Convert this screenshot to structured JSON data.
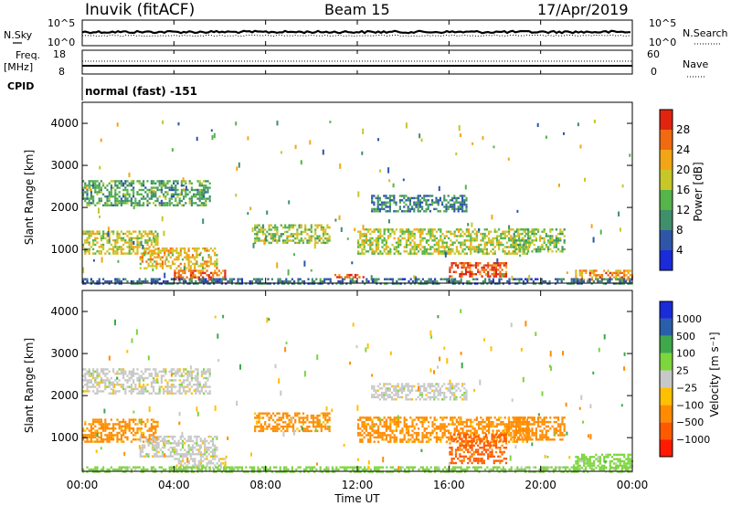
{
  "header": {
    "station": "Inuvik (fitACF)",
    "beam": "Beam 15",
    "date": "17/Apr/2019"
  },
  "sky_panel": {
    "left_label": "N.Sky",
    "right_label": "N.Search",
    "left_ticks": [
      "10^5",
      "10^0"
    ],
    "right_ticks": [
      "10^5",
      "10^0"
    ]
  },
  "freq_panel": {
    "left_label_1": "Freq.",
    "left_label_2": "[MHz]",
    "right_label": "Nave",
    "left_ticks": [
      "18",
      "8"
    ],
    "right_ticks": [
      "60",
      "0"
    ]
  },
  "cpid": {
    "label": "CPID",
    "value": "normal (fast) -151"
  },
  "colors": {
    "power_scale": [
      "#1a2bd8",
      "#2f55a8",
      "#3f8f6a",
      "#55b44a",
      "#c7c728",
      "#f2a615",
      "#ef6a10",
      "#e02410"
    ],
    "velocity_scale": [
      "#ff1a00",
      "#ff5a00",
      "#ff8c00",
      "#ffc000",
      "#c8c8c8",
      "#7cd63c",
      "#3ea84a",
      "#2a5ea8",
      "#1a2bd8"
    ]
  },
  "chart_data": [
    {
      "type": "heatmap",
      "panel": "power",
      "ylabel": "Slant Range [km]",
      "yticks": [
        "1000",
        "2000",
        "3000",
        "4000"
      ],
      "ylim": [
        200,
        4500
      ],
      "xlim_hours": [
        0,
        24
      ],
      "colorbar_label": "Power [dB]",
      "colorbar_ticks": [
        "4",
        "8",
        "12",
        "16",
        "20",
        "24",
        "28"
      ],
      "colorbar_range": [
        0,
        32
      ],
      "echo_regions": [
        {
          "t0": 0.0,
          "t1": 5.6,
          "r0": 2050,
          "r1": 2650,
          "p": 12
        },
        {
          "t0": 0.0,
          "t1": 3.3,
          "r0": 900,
          "r1": 1450,
          "p": 18
        },
        {
          "t0": 2.5,
          "t1": 5.9,
          "r0": 550,
          "r1": 1050,
          "p": 20
        },
        {
          "t0": 4.0,
          "t1": 6.2,
          "r0": 300,
          "r1": 520,
          "p": 26
        },
        {
          "t0": 7.5,
          "t1": 10.8,
          "r0": 1150,
          "r1": 1600,
          "p": 16
        },
        {
          "t0": 11.0,
          "t1": 12.3,
          "r0": 330,
          "r1": 420,
          "p": 27
        },
        {
          "t0": 12.0,
          "t1": 19.5,
          "r0": 900,
          "r1": 1500,
          "p": 17
        },
        {
          "t0": 16.0,
          "t1": 18.5,
          "r0": 380,
          "r1": 700,
          "p": 28
        },
        {
          "t0": 18.8,
          "t1": 21.0,
          "r0": 950,
          "r1": 1500,
          "p": 15
        },
        {
          "t0": 12.6,
          "t1": 16.8,
          "r0": 1900,
          "r1": 2300,
          "p": 9
        },
        {
          "t0": 21.5,
          "t1": 24.0,
          "r0": 300,
          "r1": 520,
          "p": 24
        },
        {
          "t0": 0.0,
          "t1": 24.0,
          "r0": 200,
          "r1": 320,
          "p": 8
        }
      ]
    },
    {
      "type": "heatmap",
      "panel": "velocity",
      "ylabel": "Slant Range [km]",
      "yticks": [
        "1000",
        "2000",
        "3000",
        "4000"
      ],
      "ylim": [
        200,
        4500
      ],
      "xlim_hours": [
        0,
        24
      ],
      "colorbar_label": "Velocity [m s⁻¹]",
      "colorbar_ticks": [
        "1000",
        "500",
        "100",
        "25",
        "−25",
        "−100",
        "−500",
        "−1000"
      ],
      "echo_regions": [
        {
          "t0": 0.0,
          "t1": 5.6,
          "r0": 2050,
          "r1": 2650,
          "v": 0
        },
        {
          "t0": 0.0,
          "t1": 3.3,
          "r0": 900,
          "r1": 1450,
          "v": -150
        },
        {
          "t0": 2.5,
          "t1": 5.9,
          "r0": 550,
          "r1": 1050,
          "v": 0
        },
        {
          "t0": 4.0,
          "t1": 6.2,
          "r0": 300,
          "r1": 520,
          "v": 0
        },
        {
          "t0": 7.5,
          "t1": 10.8,
          "r0": 1150,
          "r1": 1600,
          "v": -150
        },
        {
          "t0": 12.0,
          "t1": 19.5,
          "r0": 900,
          "r1": 1500,
          "v": -150
        },
        {
          "t0": 16.0,
          "t1": 18.5,
          "r0": 380,
          "r1": 1100,
          "v": -700
        },
        {
          "t0": 18.8,
          "t1": 21.0,
          "r0": 950,
          "r1": 1500,
          "v": -300
        },
        {
          "t0": 12.6,
          "t1": 16.8,
          "r0": 1900,
          "r1": 2300,
          "v": 0
        },
        {
          "t0": 21.5,
          "t1": 24.0,
          "r0": 300,
          "r1": 620,
          "v": 50
        },
        {
          "t0": 0.0,
          "t1": 24.0,
          "r0": 200,
          "r1": 320,
          "v": 50
        }
      ]
    }
  ],
  "xaxis": {
    "ticks": [
      "00:00",
      "04:00",
      "08:00",
      "12:00",
      "16:00",
      "20:00",
      "00:00"
    ],
    "label": "Time UT"
  }
}
